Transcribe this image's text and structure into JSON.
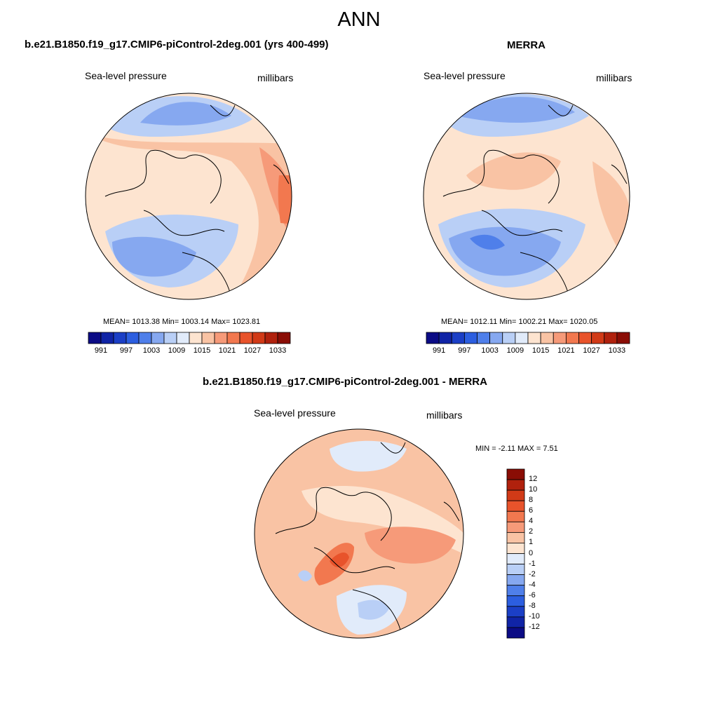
{
  "figure_title": "ANN",
  "panels": [
    {
      "title": "b.e21.B1850.f19_g17.CMIP6-piControl-2deg.001 (yrs 400-499)",
      "variable": "Sea-level pressure",
      "units": "millibars",
      "stats": "MEAN= 1013.38  Min= 1003.14  Max= 1023.81"
    },
    {
      "title": "MERRA",
      "variable": "Sea-level pressure",
      "units": "millibars",
      "stats": "MEAN= 1012.11  Min= 1002.21  Max= 1020.05"
    },
    {
      "title": "b.e21.B1850.f19_g17.CMIP6-piControl-2deg.001 - MERRA",
      "variable": "Sea-level pressure",
      "units": "millibars",
      "stats": "MIN =  -2.11 MAX =   7.51"
    }
  ],
  "abs_colorbar": {
    "colors": [
      "#0b0b85",
      "#1024a6",
      "#1b3fc6",
      "#2c5ee0",
      "#4f7fea",
      "#86a8f0",
      "#b9cff6",
      "#e1ebfa",
      "#fde4d0",
      "#f9c3a4",
      "#f69a79",
      "#f2784f",
      "#e8532b",
      "#d13a17",
      "#b0210d",
      "#8a0d05"
    ],
    "tick_labels": [
      "991",
      "997",
      "1003",
      "1009",
      "1015",
      "1021",
      "1027",
      "1033"
    ]
  },
  "diff_colorbar": {
    "colors": [
      "#8a0d05",
      "#b0210d",
      "#d13a17",
      "#e8532b",
      "#f2784f",
      "#f69a79",
      "#f9c3a4",
      "#fde4d0",
      "#e1ebfa",
      "#b9cff6",
      "#86a8f0",
      "#4f7fea",
      "#2c5ee0",
      "#1b3fc6",
      "#1024a6",
      "#0b0b85"
    ],
    "tick_labels": [
      "12",
      "10",
      "8",
      "6",
      "4",
      "2",
      "1",
      "0",
      "-1",
      "-2",
      "-4",
      "-6",
      "-8",
      "-10",
      "-12"
    ]
  }
}
